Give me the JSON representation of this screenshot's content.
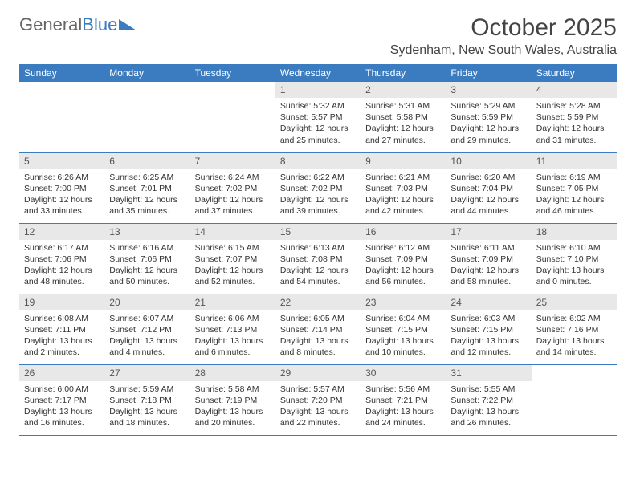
{
  "brand": {
    "part1": "General",
    "part2": "Blue"
  },
  "title": "October 2025",
  "location": "Sydenham, New South Wales, Australia",
  "colors": {
    "header_bg": "#3b7bbf",
    "header_text": "#ffffff",
    "daynum_bg": "#e8e8e8",
    "daynum_text": "#555555",
    "body_text": "#333333",
    "rule": "#3b7bbf"
  },
  "dayNames": [
    "Sunday",
    "Monday",
    "Tuesday",
    "Wednesday",
    "Thursday",
    "Friday",
    "Saturday"
  ],
  "startWeekday": 3,
  "daysInMonth": 31,
  "days": {
    "1": {
      "sunrise": "5:32 AM",
      "sunset": "5:57 PM",
      "daylight": "12 hours and 25 minutes."
    },
    "2": {
      "sunrise": "5:31 AM",
      "sunset": "5:58 PM",
      "daylight": "12 hours and 27 minutes."
    },
    "3": {
      "sunrise": "5:29 AM",
      "sunset": "5:59 PM",
      "daylight": "12 hours and 29 minutes."
    },
    "4": {
      "sunrise": "5:28 AM",
      "sunset": "5:59 PM",
      "daylight": "12 hours and 31 minutes."
    },
    "5": {
      "sunrise": "6:26 AM",
      "sunset": "7:00 PM",
      "daylight": "12 hours and 33 minutes."
    },
    "6": {
      "sunrise": "6:25 AM",
      "sunset": "7:01 PM",
      "daylight": "12 hours and 35 minutes."
    },
    "7": {
      "sunrise": "6:24 AM",
      "sunset": "7:02 PM",
      "daylight": "12 hours and 37 minutes."
    },
    "8": {
      "sunrise": "6:22 AM",
      "sunset": "7:02 PM",
      "daylight": "12 hours and 39 minutes."
    },
    "9": {
      "sunrise": "6:21 AM",
      "sunset": "7:03 PM",
      "daylight": "12 hours and 42 minutes."
    },
    "10": {
      "sunrise": "6:20 AM",
      "sunset": "7:04 PM",
      "daylight": "12 hours and 44 minutes."
    },
    "11": {
      "sunrise": "6:19 AM",
      "sunset": "7:05 PM",
      "daylight": "12 hours and 46 minutes."
    },
    "12": {
      "sunrise": "6:17 AM",
      "sunset": "7:06 PM",
      "daylight": "12 hours and 48 minutes."
    },
    "13": {
      "sunrise": "6:16 AM",
      "sunset": "7:06 PM",
      "daylight": "12 hours and 50 minutes."
    },
    "14": {
      "sunrise": "6:15 AM",
      "sunset": "7:07 PM",
      "daylight": "12 hours and 52 minutes."
    },
    "15": {
      "sunrise": "6:13 AM",
      "sunset": "7:08 PM",
      "daylight": "12 hours and 54 minutes."
    },
    "16": {
      "sunrise": "6:12 AM",
      "sunset": "7:09 PM",
      "daylight": "12 hours and 56 minutes."
    },
    "17": {
      "sunrise": "6:11 AM",
      "sunset": "7:09 PM",
      "daylight": "12 hours and 58 minutes."
    },
    "18": {
      "sunrise": "6:10 AM",
      "sunset": "7:10 PM",
      "daylight": "13 hours and 0 minutes."
    },
    "19": {
      "sunrise": "6:08 AM",
      "sunset": "7:11 PM",
      "daylight": "13 hours and 2 minutes."
    },
    "20": {
      "sunrise": "6:07 AM",
      "sunset": "7:12 PM",
      "daylight": "13 hours and 4 minutes."
    },
    "21": {
      "sunrise": "6:06 AM",
      "sunset": "7:13 PM",
      "daylight": "13 hours and 6 minutes."
    },
    "22": {
      "sunrise": "6:05 AM",
      "sunset": "7:14 PM",
      "daylight": "13 hours and 8 minutes."
    },
    "23": {
      "sunrise": "6:04 AM",
      "sunset": "7:15 PM",
      "daylight": "13 hours and 10 minutes."
    },
    "24": {
      "sunrise": "6:03 AM",
      "sunset": "7:15 PM",
      "daylight": "13 hours and 12 minutes."
    },
    "25": {
      "sunrise": "6:02 AM",
      "sunset": "7:16 PM",
      "daylight": "13 hours and 14 minutes."
    },
    "26": {
      "sunrise": "6:00 AM",
      "sunset": "7:17 PM",
      "daylight": "13 hours and 16 minutes."
    },
    "27": {
      "sunrise": "5:59 AM",
      "sunset": "7:18 PM",
      "daylight": "13 hours and 18 minutes."
    },
    "28": {
      "sunrise": "5:58 AM",
      "sunset": "7:19 PM",
      "daylight": "13 hours and 20 minutes."
    },
    "29": {
      "sunrise": "5:57 AM",
      "sunset": "7:20 PM",
      "daylight": "13 hours and 22 minutes."
    },
    "30": {
      "sunrise": "5:56 AM",
      "sunset": "7:21 PM",
      "daylight": "13 hours and 24 minutes."
    },
    "31": {
      "sunrise": "5:55 AM",
      "sunset": "7:22 PM",
      "daylight": "13 hours and 26 minutes."
    }
  },
  "labels": {
    "sunrise": "Sunrise: ",
    "sunset": "Sunset: ",
    "daylight": "Daylight: "
  }
}
